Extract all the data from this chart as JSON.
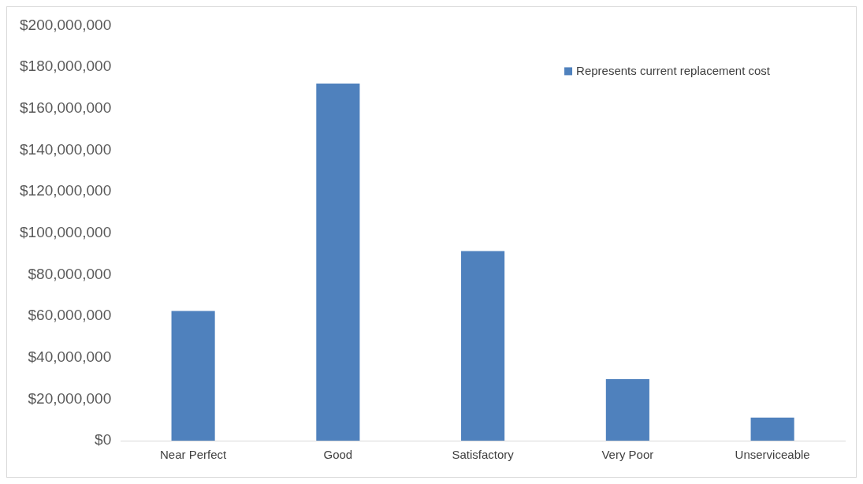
{
  "chart_data": {
    "type": "bar",
    "categories": [
      "Near Perfect",
      "Good",
      "Satisfactory",
      "Very Poor",
      "Unserviceable"
    ],
    "series": [
      {
        "name": "Represents current replacement cost",
        "color": "#4f81bd",
        "values": [
          62500000,
          172000000,
          91300000,
          29600000,
          11100000
        ]
      }
    ],
    "ylim": [
      0,
      200000000
    ],
    "yticks": [
      {
        "value": 0,
        "label": "$0"
      },
      {
        "value": 20000000,
        "label": "$20,000,000"
      },
      {
        "value": 40000000,
        "label": "$40,000,000"
      },
      {
        "value": 60000000,
        "label": "$60,000,000"
      },
      {
        "value": 80000000,
        "label": "$80,000,000"
      },
      {
        "value": 100000000,
        "label": "$100,000,000"
      },
      {
        "value": 120000000,
        "label": "$120,000,000"
      },
      {
        "value": 140000000,
        "label": "$140,000,000"
      },
      {
        "value": 160000000,
        "label": "$160,000,000"
      },
      {
        "value": 180000000,
        "label": "$180,000,000"
      },
      {
        "value": 200000000,
        "label": "$200,000,000"
      }
    ],
    "grid": false,
    "legend": "top right"
  }
}
